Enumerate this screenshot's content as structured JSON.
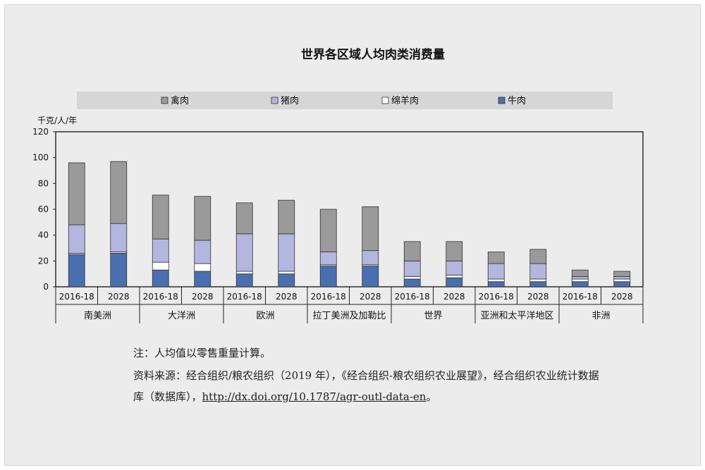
{
  "chart_data": {
    "type": "bar",
    "stacked": true,
    "title": "世界各区域人均肉类消费量",
    "ylabel": "千克/人/年",
    "ylim": [
      0,
      120
    ],
    "yticks": [
      0,
      20,
      40,
      60,
      80,
      100,
      120
    ],
    "grid": false,
    "legend_position": "top",
    "categories": [
      "2016-18",
      "2028",
      "2016-18",
      "2028",
      "2016-18",
      "2028",
      "2016-18",
      "2028",
      "2016-18",
      "2028",
      "2016-18",
      "2028",
      "2016-18",
      "2028"
    ],
    "groups": [
      "南美洲",
      "大洋洲",
      "欧洲",
      "拉丁美洲及加勒比",
      "世界",
      "亚洲和太平洋地区",
      "非洲"
    ],
    "series": [
      {
        "name": "牛肉",
        "color": "#4a6fae",
        "values": [
          25,
          26,
          13,
          12,
          10,
          10,
          16,
          16,
          6,
          7,
          4,
          4,
          4,
          4
        ]
      },
      {
        "name": "绵羊肉",
        "color": "#ffffff",
        "values": [
          1,
          1,
          6,
          6,
          2,
          2,
          1,
          1,
          2,
          2,
          2,
          2,
          2,
          2
        ]
      },
      {
        "name": "猪肉",
        "color": "#b3b6de",
        "values": [
          22,
          22,
          18,
          18,
          29,
          29,
          10,
          11,
          12,
          11,
          12,
          12,
          2,
          2
        ]
      },
      {
        "name": "禽肉",
        "color": "#9a9a9a",
        "values": [
          48,
          48,
          34,
          34,
          24,
          26,
          33,
          34,
          15,
          15,
          9,
          11,
          5,
          4
        ]
      }
    ],
    "legend_order": [
      "禽肉",
      "猪肉",
      "绵羊肉",
      "牛肉"
    ]
  },
  "notes": {
    "note_line": "注：人均值以零售重量计算。",
    "source_line1": "资料来源：经合组织/粮农组织（2019 年），《经合组织-粮农组织农业展望》，经合组织农业统计数据",
    "source_line2_prefix": "库（数据库），",
    "source_link": "http://dx.doi.org/10.1787/agr-outl-data-en",
    "source_line2_suffix": "。"
  }
}
